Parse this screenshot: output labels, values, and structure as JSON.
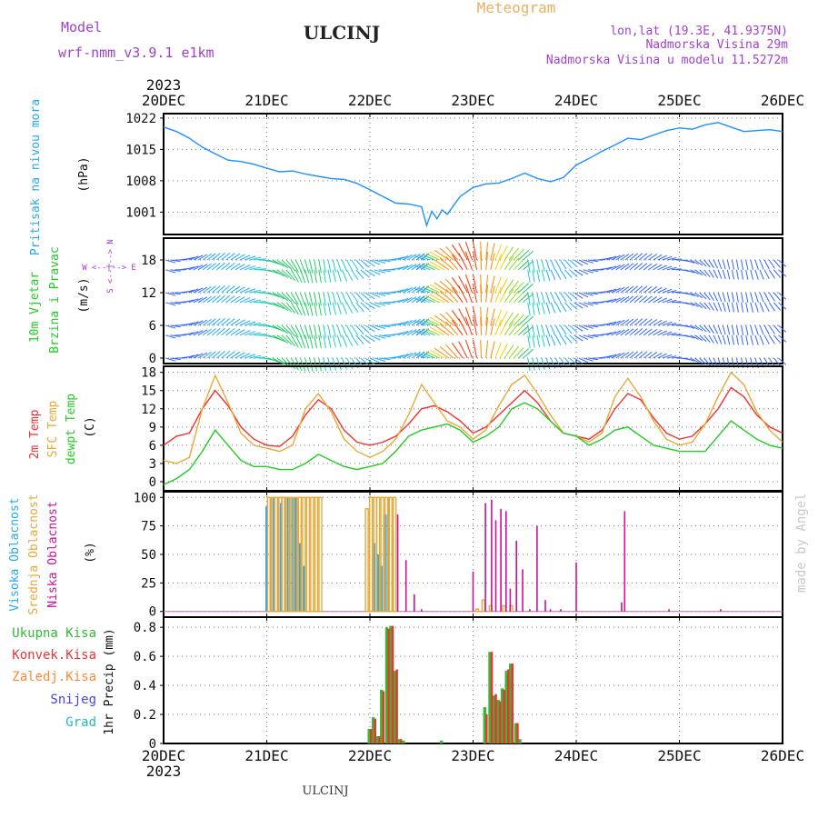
{
  "header": {
    "model_label": "Model",
    "model_name": "wrf-nmm_v3.9.1 e1km",
    "station": "ULCINJ",
    "product": "Meteogram",
    "coords": "lon,lat (19.3E, 41.9375N)",
    "elevation": "Nadmorska Visina 29m",
    "model_elevation": "Nadmorska Visina u modelu 11.5272m",
    "footer_station": "ULCINJ",
    "credit": "made by Angel"
  },
  "colors": {
    "pressure": "#1e90ff",
    "t2m": "#ee3333",
    "sfc": "#e8a838",
    "dewpt": "#22cc22",
    "high_cloud": "#22aaff",
    "mid_cloud": "#e8a838",
    "low_cloud": "#cc1199",
    "total_precip": "#33bb33",
    "conv_precip": "#ee3333",
    "frozen_precip": "#ff8833",
    "snow": "#4444ee",
    "hail": "#22bbbb"
  },
  "time_axis": {
    "year": "2023",
    "ticks": [
      "20DEC",
      "21DEC",
      "22DEC",
      "23DEC",
      "24DEC",
      "25DEC",
      "26DEC"
    ]
  },
  "chart_data": [
    {
      "type": "line",
      "panel": "pressure",
      "labels": {
        "title_left": "Pritisak na nivou mora",
        "unit": "(hPa)"
      },
      "ylim": [
        996,
        1023
      ],
      "yticks": [
        1001,
        1008,
        1015,
        1022
      ],
      "x_unit": "days since 20DEC 00UTC",
      "x": [
        0,
        0.125,
        0.25,
        0.375,
        0.5,
        0.625,
        0.75,
        0.875,
        1,
        1.125,
        1.25,
        1.375,
        1.5,
        1.625,
        1.75,
        1.875,
        2,
        2.125,
        2.25,
        2.375,
        2.5,
        2.55,
        2.6,
        2.65,
        2.7,
        2.75,
        2.875,
        3,
        3.125,
        3.25,
        3.375,
        3.5,
        3.625,
        3.75,
        3.875,
        4,
        4.125,
        4.25,
        4.375,
        4.5,
        4.625,
        4.75,
        4.875,
        5,
        5.125,
        5.25,
        5.375,
        5.5,
        5.625,
        5.75,
        5.875,
        6
      ],
      "series": [
        {
          "name": "pressure",
          "values": [
            1020,
            1019,
            1017.5,
            1015.5,
            1014,
            1012.6,
            1012.3,
            1011.7,
            1010.8,
            1010,
            1010.2,
            1009.5,
            1009,
            1008.5,
            1008.3,
            1007.4,
            1006,
            1004.5,
            1003,
            1002.8,
            1002.2,
            998,
            1001.2,
            999.5,
            1001.5,
            1000.5,
            1004.5,
            1006.5,
            1007.3,
            1007.5,
            1008.5,
            1009.7,
            1008.5,
            1007.8,
            1008.7,
            1011.5,
            1013,
            1014.6,
            1016,
            1017.5,
            1017.2,
            1018.2,
            1019.2,
            1019.8,
            1019.5,
            1020.5,
            1021,
            1020,
            1019,
            1019.2,
            1019.4,
            1019
          ]
        }
      ]
    },
    {
      "type": "scatter",
      "panel": "wind",
      "labels": {
        "title_left_1": "10m Vjetar",
        "title_left_2": "Brzina i Pravac",
        "unit": "(m/s)",
        "compass": "W <--|--> E",
        "compass_v": "S <--|--> N"
      },
      "ylim": [
        -1,
        22
      ],
      "yticks": [
        0,
        6,
        12,
        18
      ],
      "x_unit": "days since 20DEC 00UTC",
      "x": [
        0,
        0.25,
        0.5,
        0.75,
        1,
        1.25,
        1.5,
        1.75,
        2,
        2.25,
        2.5,
        2.75,
        3,
        3.25,
        3.5,
        3.75,
        4,
        4.25,
        4.5,
        4.75,
        5,
        5.25,
        5.5,
        5.75,
        6
      ],
      "series": [
        {
          "name": "speed",
          "values": [
            3,
            3,
            3.5,
            4,
            6,
            7,
            6,
            5,
            4,
            4,
            3,
            10,
            12,
            9,
            6,
            4,
            3,
            3,
            3,
            3,
            2,
            2,
            2.5,
            3,
            3
          ]
        }
      ]
    },
    {
      "type": "line",
      "panel": "temperature",
      "labels": {
        "title_left_1": "2m Temp",
        "title_left_2": "SFC Temp",
        "title_left_3": "dewpt Temp",
        "unit": "(C)"
      },
      "ylim": [
        -1.5,
        19
      ],
      "yticks": [
        0,
        3,
        6,
        9,
        12,
        15,
        18
      ],
      "x_unit": "days since 20DEC 00UTC",
      "x": [
        0,
        0.125,
        0.25,
        0.375,
        0.5,
        0.625,
        0.75,
        0.875,
        1,
        1.125,
        1.25,
        1.375,
        1.5,
        1.625,
        1.75,
        1.875,
        2,
        2.125,
        2.25,
        2.375,
        2.5,
        2.625,
        2.75,
        2.875,
        3,
        3.125,
        3.25,
        3.375,
        3.5,
        3.625,
        3.75,
        3.875,
        4,
        4.125,
        4.25,
        4.375,
        4.5,
        4.625,
        4.75,
        4.875,
        5,
        5.125,
        5.25,
        5.375,
        5.5,
        5.625,
        5.75,
        5.875,
        6
      ],
      "series": [
        {
          "name": "2m Temp",
          "values": [
            6,
            7.5,
            8,
            12,
            15,
            12.5,
            9,
            7,
            6,
            5.8,
            7.5,
            11,
            13.5,
            12,
            8.5,
            6.5,
            6,
            6.5,
            7.5,
            9.5,
            12,
            12.5,
            11.5,
            10,
            8,
            9,
            11,
            13,
            15,
            13,
            10,
            8,
            7.5,
            7,
            8.5,
            12,
            14.5,
            13.5,
            10.5,
            8,
            7,
            7.5,
            9.5,
            12,
            15.5,
            14,
            11,
            9,
            8
          ]
        },
        {
          "name": "SFC Temp",
          "values": [
            3.5,
            3,
            4,
            12,
            17.5,
            13,
            8,
            6,
            5.5,
            5,
            6,
            12,
            14.5,
            11.5,
            7,
            5,
            4,
            5,
            7,
            11,
            16,
            13,
            10,
            9,
            7,
            8.5,
            12.5,
            16,
            17.5,
            14.5,
            11,
            8,
            7.5,
            6.5,
            8,
            14,
            17,
            14,
            10,
            7,
            6,
            6.5,
            9.5,
            14,
            18,
            16,
            11.5,
            8.5,
            6.5
          ]
        },
        {
          "name": "dewpt Temp",
          "values": [
            -0.5,
            0.5,
            2,
            5,
            8.5,
            6,
            3.5,
            2.5,
            2.5,
            2,
            2,
            3,
            4.5,
            3.5,
            2.5,
            2,
            2.5,
            3,
            5,
            7.5,
            8.5,
            9,
            9.5,
            8.5,
            6.5,
            7.5,
            9,
            12,
            13,
            12,
            10,
            8,
            7.5,
            6,
            7,
            8.5,
            9,
            7.5,
            6,
            5.5,
            5,
            5,
            5,
            7.5,
            10,
            8.5,
            7,
            6,
            5.5
          ]
        }
      ]
    },
    {
      "type": "bar",
      "panel": "clouds",
      "labels": {
        "title_left_1": "Visoka Oblacnost",
        "title_left_2": "Srednja Oblacnost",
        "title_left_3": "Niska Oblacnost",
        "unit": "(%)"
      },
      "ylim": [
        -5,
        105
      ],
      "yticks": [
        0,
        25,
        50,
        75,
        100
      ],
      "x_unit": "days since 20DEC 00UTC",
      "series": [
        {
          "name": "Visoka Oblacnost",
          "x": [
            1.0,
            1.04,
            1.07,
            1.11,
            1.14,
            1.18,
            1.21,
            1.25,
            1.28,
            1.32,
            1.36,
            2.04,
            2.08,
            2.11,
            2.15,
            2.18,
            2.22
          ],
          "values": [
            92,
            100,
            100,
            100,
            95,
            100,
            100,
            100,
            100,
            60,
            40,
            60,
            50,
            40,
            85,
            100,
            70
          ]
        },
        {
          "name": "Srednja Oblacnost",
          "x": [
            1.02,
            1.06,
            1.09,
            1.13,
            1.16,
            1.2,
            1.24,
            1.28,
            1.32,
            1.36,
            1.4,
            1.44,
            1.48,
            1.52,
            1.97,
            2.01,
            2.05,
            2.08,
            2.12,
            2.16,
            2.2,
            2.24,
            3.04,
            3.1,
            3.17,
            3.3,
            3.37
          ],
          "values": [
            100,
            100,
            100,
            100,
            100,
            100,
            100,
            100,
            100,
            100,
            100,
            100,
            100,
            100,
            90,
            100,
            100,
            100,
            100,
            100,
            100,
            100,
            2,
            10,
            5,
            5,
            5
          ]
        },
        {
          "name": "Niska Oblacnost",
          "x": [
            2.27,
            2.35,
            2.43,
            2.5,
            3.0,
            3.12,
            3.18,
            3.22,
            3.27,
            3.32,
            3.36,
            3.42,
            3.48,
            3.55,
            3.62,
            3.7,
            3.75,
            3.85,
            4.0,
            4.44,
            4.47,
            4.9,
            5.4
          ],
          "values": [
            85,
            45,
            15,
            2,
            35,
            95,
            98,
            80,
            90,
            88,
            20,
            62,
            37,
            2,
            75,
            10,
            2,
            2,
            43,
            8,
            88,
            2,
            2
          ]
        }
      ]
    },
    {
      "type": "bar",
      "panel": "precip",
      "labels": {
        "legend_1": "Ukupna Kisa",
        "legend_2": "Konvek.Kisa",
        "legend_3": "Zaledj.Kisa",
        "legend_4": "Snijeg",
        "legend_5": "Grad",
        "unit": "1hr Precip (mm)"
      },
      "ylim": [
        0,
        0.87
      ],
      "yticks": [
        0,
        0.2,
        0.4,
        0.6,
        0.8
      ],
      "x_unit": "days since 20DEC 00UTC",
      "series": [
        {
          "name": "Ukupna Kisa",
          "x": [
            2.0,
            2.04,
            2.08,
            2.12,
            2.17,
            2.21,
            2.25,
            2.29,
            2.33,
            2.7,
            3.12,
            3.17,
            3.21,
            3.25,
            3.29,
            3.33,
            3.37,
            3.42,
            3.46
          ],
          "values": [
            0.1,
            0.18,
            0.05,
            0.37,
            0.8,
            0.81,
            0.5,
            0.03,
            0.02,
            0.02,
            0.25,
            0.63,
            0.33,
            0.3,
            0.38,
            0.5,
            0.55,
            0.14,
            0.03
          ]
        },
        {
          "name": "Konvek.Kisa",
          "x": [
            2.0,
            2.04,
            2.08,
            2.12,
            2.17,
            2.21,
            2.25,
            2.29,
            3.12,
            3.17,
            3.21,
            3.25,
            3.29,
            3.33,
            3.37,
            3.42
          ],
          "values": [
            0.1,
            0.17,
            0.05,
            0.36,
            0.79,
            0.81,
            0.51,
            0.03,
            0.2,
            0.63,
            0.34,
            0.29,
            0.37,
            0.51,
            0.55,
            0.14
          ]
        }
      ]
    }
  ]
}
